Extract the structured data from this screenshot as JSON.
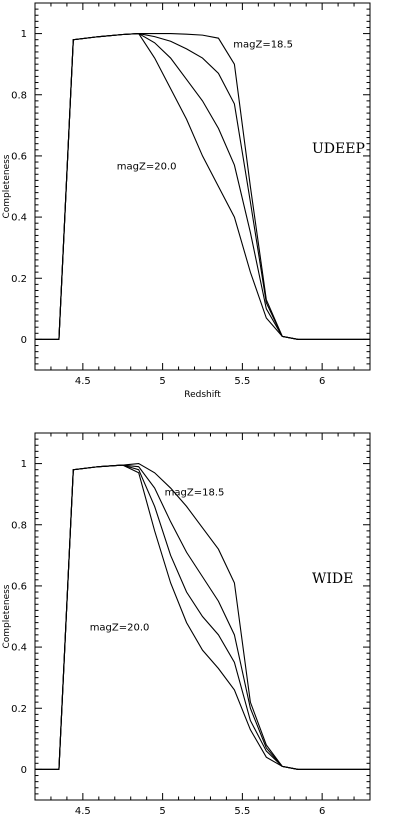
{
  "chart_data": [
    {
      "type": "line",
      "panel_label": "UDEEP",
      "title": "",
      "xlabel": "Redshift",
      "ylabel": "Completeness",
      "xlim": [
        4.2,
        6.3
      ],
      "ylim": [
        -0.1,
        1.1
      ],
      "xticks": [
        4.5,
        5,
        5.5,
        6
      ],
      "xtick_labels": [
        "4.5",
        "5",
        "5.5",
        "6"
      ],
      "yticks": [
        0,
        0.2,
        0.4,
        0.6,
        0.8,
        1
      ],
      "ytick_labels": [
        "0",
        "0.2",
        "0.4",
        "0.6",
        "0.8",
        "1"
      ],
      "grid": false,
      "annotations": [
        {
          "text": "magZ=18.5",
          "x": 5.63,
          "y": 0.955
        },
        {
          "text": "magZ=20.0",
          "x": 4.9,
          "y": 0.555
        }
      ],
      "series": [
        {
          "x": [
            4.2,
            4.35,
            4.44,
            4.6,
            4.75,
            4.85,
            4.95,
            5.05,
            5.15,
            5.25,
            5.35,
            5.45,
            5.55,
            5.65,
            5.75,
            5.85,
            6.3
          ],
          "values": [
            0,
            0,
            0.98,
            0.99,
            0.997,
            1.0,
            1.0,
            1.0,
            0.998,
            0.995,
            0.985,
            0.9,
            0.5,
            0.13,
            0.01,
            0,
            0
          ]
        },
        {
          "x": [
            4.2,
            4.35,
            4.44,
            4.6,
            4.75,
            4.85,
            4.95,
            5.05,
            5.15,
            5.25,
            5.35,
            5.45,
            5.55,
            5.65,
            5.75,
            5.85,
            6.3
          ],
          "values": [
            0,
            0,
            0.98,
            0.99,
            0.997,
            1.0,
            0.99,
            0.975,
            0.95,
            0.92,
            0.87,
            0.77,
            0.45,
            0.12,
            0.01,
            0,
            0
          ]
        },
        {
          "x": [
            4.2,
            4.35,
            4.44,
            4.6,
            4.75,
            4.85,
            4.95,
            5.05,
            5.15,
            5.25,
            5.35,
            5.45,
            5.55,
            5.65,
            5.75,
            5.85,
            6.3
          ],
          "values": [
            0,
            0,
            0.98,
            0.99,
            0.997,
            1.0,
            0.97,
            0.92,
            0.85,
            0.78,
            0.69,
            0.57,
            0.35,
            0.1,
            0.01,
            0,
            0
          ]
        },
        {
          "x": [
            4.2,
            4.35,
            4.44,
            4.6,
            4.75,
            4.85,
            4.95,
            5.05,
            5.15,
            5.25,
            5.35,
            5.45,
            5.55,
            5.65,
            5.75,
            5.85,
            6.3
          ],
          "values": [
            0,
            0,
            0.98,
            0.99,
            0.997,
            1.0,
            0.92,
            0.82,
            0.72,
            0.6,
            0.5,
            0.4,
            0.22,
            0.07,
            0.01,
            0,
            0
          ]
        }
      ]
    },
    {
      "type": "line",
      "panel_label": "WIDE",
      "title": "",
      "xlabel": "Redshift",
      "ylabel": "Completeness",
      "xlim": [
        4.2,
        6.3
      ],
      "ylim": [
        -0.1,
        1.1
      ],
      "xticks": [
        4.5,
        5,
        5.5,
        6
      ],
      "xtick_labels": [
        "4.5",
        "5",
        "5.5",
        "6"
      ],
      "yticks": [
        0,
        0.2,
        0.4,
        0.6,
        0.8,
        1
      ],
      "ytick_labels": [
        "0",
        "0.2",
        "0.4",
        "0.6",
        "0.8",
        "1"
      ],
      "grid": false,
      "annotations": [
        {
          "text": "magZ=18.5",
          "x": 5.2,
          "y": 0.895
        },
        {
          "text": "magZ=20.0",
          "x": 4.73,
          "y": 0.455
        }
      ],
      "series": [
        {
          "x": [
            4.2,
            4.35,
            4.44,
            4.6,
            4.75,
            4.85,
            4.95,
            5.05,
            5.15,
            5.25,
            5.35,
            5.45,
            5.55,
            5.65,
            5.75,
            5.85,
            6.3
          ],
          "values": [
            0,
            0,
            0.98,
            0.99,
            0.995,
            1.0,
            0.97,
            0.92,
            0.86,
            0.79,
            0.72,
            0.61,
            0.22,
            0.08,
            0.01,
            0,
            0
          ]
        },
        {
          "x": [
            4.2,
            4.35,
            4.44,
            4.6,
            4.75,
            4.85,
            4.95,
            5.05,
            5.15,
            5.25,
            5.35,
            5.45,
            5.55,
            5.65,
            5.75,
            5.85,
            6.3
          ],
          "values": [
            0,
            0,
            0.98,
            0.99,
            0.995,
            0.99,
            0.92,
            0.81,
            0.71,
            0.63,
            0.55,
            0.44,
            0.2,
            0.07,
            0.01,
            0,
            0
          ]
        },
        {
          "x": [
            4.2,
            4.35,
            4.44,
            4.6,
            4.75,
            4.85,
            4.95,
            5.05,
            5.15,
            5.25,
            5.35,
            5.45,
            5.55,
            5.65,
            5.75,
            5.85,
            6.3
          ],
          "values": [
            0,
            0,
            0.98,
            0.99,
            0.995,
            0.98,
            0.86,
            0.7,
            0.58,
            0.5,
            0.44,
            0.35,
            0.16,
            0.06,
            0.01,
            0,
            0
          ]
        },
        {
          "x": [
            4.2,
            4.35,
            4.44,
            4.6,
            4.75,
            4.85,
            4.95,
            5.05,
            5.15,
            5.25,
            5.35,
            5.45,
            5.55,
            5.65,
            5.75,
            5.85,
            6.3
          ],
          "values": [
            0,
            0,
            0.98,
            0.99,
            0.995,
            0.97,
            0.78,
            0.61,
            0.48,
            0.39,
            0.33,
            0.26,
            0.13,
            0.04,
            0.01,
            0,
            0
          ]
        }
      ]
    }
  ]
}
